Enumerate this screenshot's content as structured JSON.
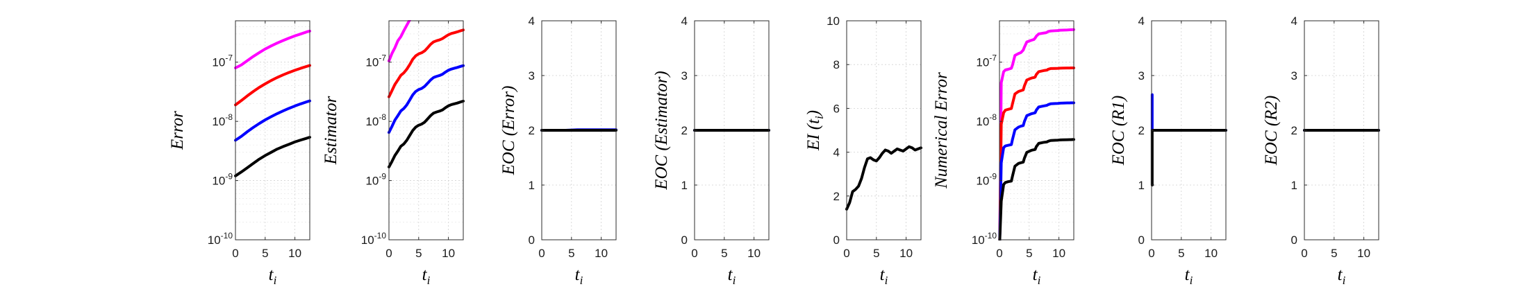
{
  "figure": {
    "panels": [
      {
        "id": "error",
        "ylabel": "Error",
        "xlabel_base": "t",
        "xlabel_sub": "i"
      },
      {
        "id": "estimator",
        "ylabel": "Estimator",
        "xlabel_base": "t",
        "xlabel_sub": "i"
      },
      {
        "id": "eoc-error",
        "ylabel": "EOC (Error)",
        "xlabel_base": "t",
        "xlabel_sub": "i"
      },
      {
        "id": "eoc-estimator",
        "ylabel": "EOC (Estimator)",
        "xlabel_base": "t",
        "xlabel_sub": "i"
      },
      {
        "id": "ei",
        "ylabel": "EI (t",
        "ylabel_sub": "i",
        "ylabel_close": ")",
        "xlabel_base": "t",
        "xlabel_sub": "i"
      },
      {
        "id": "numerical-error",
        "ylabel": "Numerical Error",
        "xlabel_base": "t",
        "xlabel_sub": "i"
      },
      {
        "id": "eoc-r1",
        "ylabel": "EOC (R1)",
        "xlabel_base": "t",
        "xlabel_sub": "i"
      },
      {
        "id": "eoc-r2",
        "ylabel": "EOC (R2)",
        "xlabel_base": "t",
        "xlabel_sub": "i"
      }
    ]
  },
  "chart_data": [
    {
      "type": "line",
      "ylabel": "Error",
      "xlabel": "t_i",
      "xlim": [
        0,
        12.5
      ],
      "xticks": [
        0,
        5,
        10
      ],
      "yscale": "log",
      "ylim": [
        1e-10,
        5e-07
      ],
      "yticks": [
        1e-10,
        1e-09,
        1e-08,
        1e-07
      ],
      "yticklabels": [
        "10^-10",
        "10^-9",
        "10^-8",
        "10^-7"
      ],
      "grid": true,
      "colors": [
        "#ff00ff",
        "#ff0000",
        "#0000ff",
        "#000000"
      ],
      "x": [
        0,
        1,
        2,
        3,
        4,
        5,
        6,
        7,
        8,
        9,
        10,
        11,
        12,
        12.5
      ],
      "series": [
        {
          "values": [
            8e-08,
            9e-08,
            1.06e-07,
            1.25e-07,
            1.45e-07,
            1.67e-07,
            1.88e-07,
            2.1e-07,
            2.32e-07,
            2.55e-07,
            2.78e-07,
            3e-07,
            3.25e-07,
            3.35e-07
          ]
        },
        {
          "values": [
            1.9e-08,
            2.25e-08,
            2.7e-08,
            3.2e-08,
            3.75e-08,
            4.3e-08,
            4.9e-08,
            5.5e-08,
            6.1e-08,
            6.7e-08,
            7.3e-08,
            7.9e-08,
            8.5e-08,
            8.8e-08
          ]
        },
        {
          "values": [
            4.8e-09,
            5.6e-09,
            6.7e-09,
            7.9e-09,
            9.2e-09,
            1.06e-08,
            1.2e-08,
            1.35e-08,
            1.5e-08,
            1.66e-08,
            1.82e-08,
            1.98e-08,
            2.14e-08,
            2.22e-08
          ]
        },
        {
          "values": [
            1.2e-09,
            1.4e-09,
            1.65e-09,
            1.95e-09,
            2.3e-09,
            2.65e-09,
            3e-09,
            3.4e-09,
            3.75e-09,
            4.1e-09,
            4.5e-09,
            4.85e-09,
            5.2e-09,
            5.4e-09
          ]
        }
      ]
    },
    {
      "type": "line",
      "ylabel": "Estimator",
      "xlabel": "t_i",
      "xlim": [
        0,
        12.5
      ],
      "xticks": [
        0,
        5,
        10
      ],
      "yscale": "log",
      "ylim": [
        1e-10,
        5e-07
      ],
      "yticks": [
        1e-10,
        1e-09,
        1e-08,
        1e-07
      ],
      "yticklabels": [
        "10^-10",
        "10^-9",
        "10^-8",
        "10^-7"
      ],
      "grid": true,
      "colors": [
        "#ff00ff",
        "#ff0000",
        "#0000ff",
        "#000000"
      ],
      "x": [
        0,
        0.5,
        1,
        1.5,
        2,
        2.5,
        3,
        3.5,
        4,
        4.5,
        5,
        5.5,
        6,
        6.5,
        7,
        7.5,
        8,
        8.5,
        9,
        9.5,
        10,
        10.5,
        11,
        11.5,
        12,
        12.5
      ],
      "series": [
        {
          "values": [
            1.05e-07,
            1.4e-07,
            1.75e-07,
            2.3e-07,
            2.7e-07,
            3.4e-07,
            4.2e-07,
            5.2e-07,
            null,
            null,
            null,
            null,
            null,
            null,
            null,
            null,
            null,
            null,
            null,
            null,
            null,
            null,
            null,
            null,
            null,
            null
          ]
        },
        {
          "values": [
            2.6e-08,
            3.3e-08,
            4.2e-08,
            5e-08,
            6e-08,
            6.6e-08,
            7.6e-08,
            9.1e-08,
            1.12e-07,
            1.28e-07,
            1.38e-07,
            1.44e-07,
            1.55e-07,
            1.75e-07,
            2e-07,
            2.2e-07,
            2.3e-07,
            2.38e-07,
            2.5e-07,
            2.7e-07,
            2.9e-07,
            3.05e-07,
            3.15e-07,
            3.25e-07,
            3.38e-07,
            3.5e-07
          ]
        },
        {
          "values": [
            6.5e-09,
            8.2e-09,
            1.05e-08,
            1.25e-08,
            1.5e-08,
            1.65e-08,
            1.9e-08,
            2.3e-08,
            2.8e-08,
            3.2e-08,
            3.45e-08,
            3.6e-08,
            3.9e-08,
            4.4e-08,
            5e-08,
            5.5e-08,
            5.75e-08,
            5.95e-08,
            6.25e-08,
            6.8e-08,
            7.3e-08,
            7.65e-08,
            7.9e-08,
            8.15e-08,
            8.45e-08,
            8.75e-08
          ]
        },
        {
          "values": [
            1.7e-09,
            2.1e-09,
            2.65e-09,
            3.15e-09,
            3.8e-09,
            4.15e-09,
            4.8e-09,
            5.8e-09,
            7e-09,
            8e-09,
            8.6e-09,
            9e-09,
            9.7e-09,
            1.1e-08,
            1.25e-08,
            1.38e-08,
            1.44e-08,
            1.49e-08,
            1.56e-08,
            1.7e-08,
            1.83e-08,
            1.92e-08,
            1.98e-08,
            2.04e-08,
            2.12e-08,
            2.2e-08
          ]
        }
      ]
    },
    {
      "type": "line",
      "ylabel": "EOC (Error)",
      "xlabel": "t_i",
      "xlim": [
        0,
        12.5
      ],
      "xticks": [
        0,
        5,
        10
      ],
      "ylim": [
        0,
        4
      ],
      "yticks": [
        0,
        1,
        2,
        3,
        4
      ],
      "grid": true,
      "colors": [
        "#0000ff",
        "#000000"
      ],
      "x": [
        0,
        2,
        4,
        6,
        8,
        10,
        12.5
      ],
      "series": [
        {
          "values": [
            2.0,
            2.0,
            2.0,
            2.01,
            2.01,
            2.01,
            2.01
          ]
        },
        {
          "values": [
            2.0,
            2.0,
            2.0,
            2.0,
            2.0,
            2.0,
            2.0
          ]
        }
      ]
    },
    {
      "type": "line",
      "ylabel": "EOC (Estimator)",
      "xlabel": "t_i",
      "xlim": [
        0,
        12.5
      ],
      "xticks": [
        0,
        5,
        10
      ],
      "ylim": [
        0,
        4
      ],
      "yticks": [
        0,
        1,
        2,
        3,
        4
      ],
      "grid": true,
      "colors": [
        "#0000ff",
        "#000000"
      ],
      "x": [
        0,
        2,
        4,
        6,
        8,
        10,
        12.5
      ],
      "series": [
        {
          "values": [
            2.0,
            2.0,
            2.0,
            2.0,
            2.0,
            2.0,
            2.0
          ]
        },
        {
          "values": [
            2.0,
            2.0,
            2.0,
            2.0,
            2.0,
            2.0,
            2.0
          ]
        }
      ]
    },
    {
      "type": "line",
      "ylabel": "EI (t_i)",
      "xlabel": "t_i",
      "xlim": [
        0,
        12.5
      ],
      "xticks": [
        0,
        5,
        10
      ],
      "ylim": [
        0,
        10
      ],
      "yticks": [
        0,
        2,
        4,
        6,
        8,
        10
      ],
      "grid": true,
      "colors": [
        "#000000"
      ],
      "x": [
        0,
        0.5,
        1,
        1.5,
        2,
        2.5,
        3,
        3.5,
        4,
        4.5,
        5,
        5.5,
        6,
        6.5,
        7,
        7.5,
        8,
        8.5,
        9,
        9.5,
        10,
        10.5,
        11,
        11.5,
        12,
        12.5
      ],
      "series": [
        {
          "values": [
            1.4,
            1.7,
            2.2,
            2.3,
            2.45,
            2.8,
            3.3,
            3.7,
            3.75,
            3.65,
            3.6,
            3.75,
            3.95,
            4.1,
            4.05,
            3.95,
            4.05,
            4.15,
            4.1,
            4.05,
            4.15,
            4.25,
            4.2,
            4.1,
            4.15,
            4.2
          ]
        }
      ]
    },
    {
      "type": "line",
      "ylabel": "Numerical Error",
      "xlabel": "t_i",
      "xlim": [
        0,
        12.5
      ],
      "xticks": [
        0,
        5,
        10
      ],
      "yscale": "log",
      "ylim": [
        1e-10,
        5e-07
      ],
      "yticks": [
        1e-10,
        1e-09,
        1e-08,
        1e-07
      ],
      "yticklabels": [
        "10^-10",
        "10^-9",
        "10^-8",
        "10^-7"
      ],
      "grid": true,
      "colors": [
        "#ff00ff",
        "#ff0000",
        "#0000ff",
        "#000000"
      ],
      "x": [
        0.05,
        0.3,
        0.7,
        1,
        1.5,
        2,
        2.2,
        2.6,
        3.2,
        3.6,
        4,
        4.2,
        4.6,
        5.4,
        5.8,
        6,
        6.2,
        6.6,
        7.4,
        7.8,
        8,
        8.2,
        8.6,
        9.4,
        9.8,
        10,
        10.2,
        10.6,
        11.4,
        11.8,
        12,
        12.5
      ],
      "series": [
        {
          "values": [
            1e-10,
            4.5e-08,
            6.9e-08,
            7.4e-08,
            7.6e-08,
            7.9e-08,
            9e-08,
            1.3e-07,
            1.4e-07,
            1.45e-07,
            1.6e-07,
            1.8e-07,
            2.2e-07,
            2.35e-07,
            2.42e-07,
            2.55e-07,
            2.75e-07,
            3e-07,
            3.1e-07,
            3.14e-07,
            3.2e-07,
            3.3e-07,
            3.36e-07,
            3.4e-07,
            3.42e-07,
            3.44e-07,
            3.46e-07,
            3.48e-07,
            3.5e-07,
            3.52e-07,
            3.53e-07,
            3.55e-07
          ]
        },
        {
          "values": [
            1e-10,
            9e-09,
            1.4e-08,
            1.55e-08,
            1.6e-08,
            1.65e-08,
            2e-08,
            2.9e-08,
            3.2e-08,
            3.3e-08,
            3.4e-08,
            4e-08,
            5e-08,
            5.4e-08,
            5.5e-08,
            5.6e-08,
            6.2e-08,
            6.9e-08,
            7.2e-08,
            7.3e-08,
            7.35e-08,
            7.6e-08,
            7.8e-08,
            7.85e-08,
            7.87e-08,
            7.9e-08,
            7.92e-08,
            7.95e-08,
            7.97e-08,
            7.98e-08,
            8e-08,
            8e-08
          ]
        },
        {
          "values": [
            1e-10,
            2e-09,
            3.6e-09,
            3.85e-09,
            3.95e-09,
            4.05e-09,
            5e-09,
            7.2e-09,
            8e-09,
            8.3e-09,
            8.5e-09,
            1e-08,
            1.25e-08,
            1.35e-08,
            1.38e-08,
            1.4e-08,
            1.55e-08,
            1.75e-08,
            1.82e-08,
            1.85e-08,
            1.87e-08,
            1.92e-08,
            1.98e-08,
            2e-08,
            2.01e-08,
            2.02e-08,
            2.03e-08,
            2.04e-08,
            2.05e-08,
            2.05e-08,
            2.06e-08,
            2.06e-08
          ]
        },
        {
          "values": [
            1e-10,
            4.5e-10,
            8.6e-10,
            9.3e-10,
            9.6e-10,
            9.8e-10,
            1.2e-09,
            1.75e-09,
            1.95e-09,
            2e-09,
            2.05e-09,
            2.4e-09,
            3e-09,
            3.25e-09,
            3.32e-09,
            3.35e-09,
            3.75e-09,
            4.25e-09,
            4.42e-09,
            4.47e-09,
            4.5e-09,
            4.62e-09,
            4.75e-09,
            4.8e-09,
            4.82e-09,
            4.84e-09,
            4.86e-09,
            4.88e-09,
            4.9e-09,
            4.91e-09,
            4.92e-09,
            4.95e-09
          ]
        }
      ]
    },
    {
      "type": "line",
      "ylabel": "EOC (R1)",
      "xlabel": "t_i",
      "xlim": [
        0,
        12.5
      ],
      "xticks": [
        0,
        5,
        10
      ],
      "ylim": [
        0,
        4
      ],
      "yticks": [
        0,
        1,
        2,
        3,
        4
      ],
      "grid": true,
      "colors": [
        "#0000ff",
        "#000000"
      ],
      "x": [
        0.1,
        0.1,
        0.4,
        12.5
      ],
      "series": [
        {
          "values": [
            2.65,
            2.0,
            2.0,
            2.0
          ]
        },
        {
          "values": [
            1.0,
            2.0,
            2.0,
            2.0
          ]
        }
      ]
    },
    {
      "type": "line",
      "ylabel": "EOC (R2)",
      "xlabel": "t_i",
      "xlim": [
        0,
        12.5
      ],
      "xticks": [
        0,
        5,
        10
      ],
      "ylim": [
        0,
        4
      ],
      "yticks": [
        0,
        1,
        2,
        3,
        4
      ],
      "grid": true,
      "colors": [
        "#0000ff",
        "#000000"
      ],
      "x": [
        0,
        2,
        4,
        6,
        8,
        10,
        12.5
      ],
      "series": [
        {
          "values": [
            2.0,
            2.0,
            2.0,
            2.0,
            2.0,
            2.0,
            2.0
          ]
        },
        {
          "values": [
            2.0,
            2.0,
            2.0,
            2.0,
            2.0,
            2.0,
            2.0
          ]
        }
      ]
    }
  ]
}
